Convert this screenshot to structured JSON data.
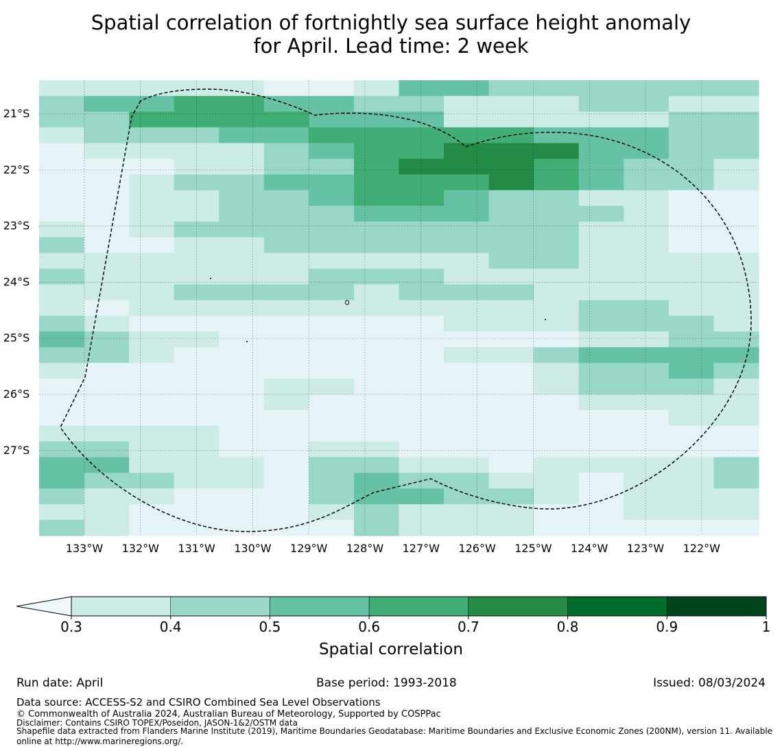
{
  "title": {
    "line1": "Spatial correlation of fortnightly sea surface height anomaly",
    "line2": "for April. Lead time: 2 week"
  },
  "map": {
    "lat_labels": [
      "21°S",
      "22°S",
      "23°S",
      "24°S",
      "25°S",
      "26°S",
      "27°S"
    ],
    "lon_labels": [
      "133°W",
      "132°W",
      "131°W",
      "130°W",
      "129°W",
      "128°W",
      "127°W",
      "126°W",
      "125°W",
      "124°W",
      "123°W",
      "122°W"
    ],
    "boundary": "Maritime boundary / EEZ (dashed)"
  },
  "colorbar": {
    "label": "Spatial correlation",
    "ticks": [
      "0.3",
      "0.4",
      "0.5",
      "0.6",
      "0.7",
      "0.8",
      "0.9",
      "1"
    ],
    "colors": [
      "#e6f4f8",
      "#cdece6",
      "#99d8c9",
      "#66c2a4",
      "#41ae76",
      "#238b45",
      "#006d2c",
      "#00441b"
    ]
  },
  "chart_data": {
    "type": "heatmap",
    "title": "Spatial correlation of fortnightly sea surface height anomaly for April. Lead time: 2 week",
    "colorbar_label": "Spatial correlation",
    "levels": [
      0.3,
      0.4,
      0.5,
      0.6,
      0.7,
      0.8,
      0.9,
      1.0
    ],
    "lon_range": [
      "133.8°W",
      "121.1°W"
    ],
    "lat_range": [
      "20.6°S",
      "28.5°S"
    ],
    "note": "values are binned correlation classes; 0 = below 0.3",
    "grid": [
      "1111100133222222",
      "2334433221112211",
      "2244443331111122",
      "1222334444433322",
      "0111123445553322",
      "0001122455543221",
      "0012233444543221",
      "0011223443221100",
      "0011222333222100",
      "1012222222221100",
      "2001122222221100",
      "1111111111221111",
      "2111112221111111",
      "1112222122211111",
      "1011111111112211",
      "2100000001112221",
      "3211000000001122",
      "2210000001123333",
      "1000000000012232",
      "0000011000012221",
      "0000010000001111",
      "0000000000000011",
      "1111000000000000",
      "2211001100000000",
      "3311102211011112",
      "3221102322110112",
      "2110002332210111",
      "1100001211100111",
      "2100000211100000"
    ]
  },
  "footer": {
    "run_date": "Run date: April",
    "base_period": "Base period: 1993-2018",
    "issued": "Issued: 08/03/2024",
    "data_source": "Data source: ACCESS-S2 and CSIRO Combined Sea Level Observations",
    "copyright": "© Commonwealth of Australia 2024, Australian Bureau of Meteorology, Supported by COSPPac",
    "disclaimer": "Disclaimer: Contains CSIRO TOPEX/Poseidon, JASON-1&2/OSTM data",
    "shapefile_1": "Shapefile data extracted from Flanders Marine Institute (2019), Maritime Boundaries Geodatabase: Maritime Boundaries and Exclusive Economic Zones (200NM), version 11. Available",
    "shapefile_2": "online at http://www.marineregions.org/."
  }
}
